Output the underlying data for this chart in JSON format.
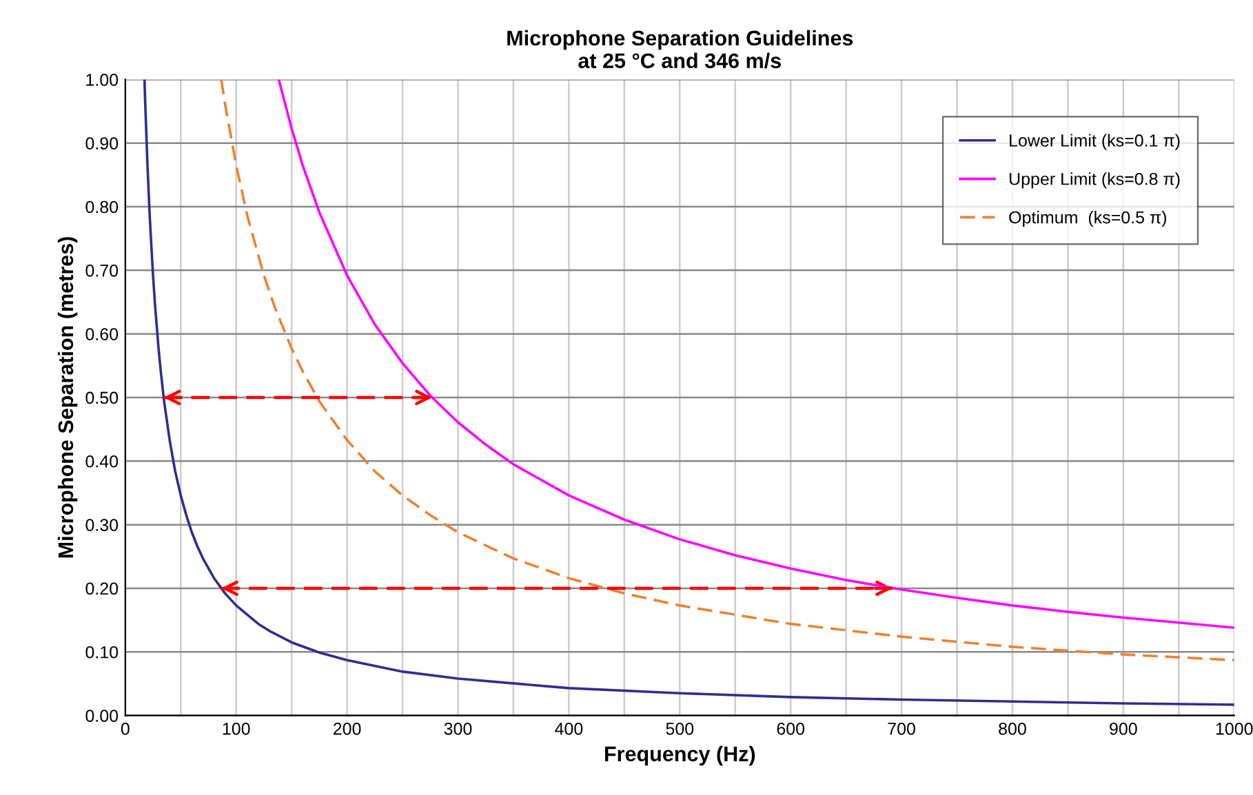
{
  "chart_data": {
    "type": "line",
    "title": "Microphone Separation Guidelines\nat 25 °C and 346 m/s",
    "xlabel": "Frequency (Hz)",
    "ylabel": "Microphone Separation (metres)",
    "series": [
      {
        "name": "Lower Limit (ks=0.1 π)",
        "color": "#2e2e8f",
        "line_style": "solid",
        "x": [
          17.3,
          18,
          20,
          22,
          25,
          27,
          30,
          32,
          35,
          40,
          45,
          50,
          55,
          60,
          65,
          70,
          80,
          90,
          100,
          120,
          130,
          150,
          175,
          200,
          250,
          300,
          400,
          500,
          600,
          700,
          800,
          900,
          1000
        ],
        "values": [
          1.0,
          0.961,
          0.865,
          0.786,
          0.692,
          0.641,
          0.577,
          0.541,
          0.494,
          0.433,
          0.384,
          0.346,
          0.315,
          0.288,
          0.266,
          0.247,
          0.216,
          0.192,
          0.173,
          0.144,
          0.133,
          0.115,
          0.099,
          0.087,
          0.069,
          0.058,
          0.043,
          0.035,
          0.029,
          0.025,
          0.022,
          0.019,
          0.017
        ]
      },
      {
        "name": "Upper Limit (ks=0.8 π)",
        "color": "#ff00ff",
        "line_style": "solid",
        "x": [
          138.4,
          150,
          160,
          175,
          200,
          225,
          250,
          275,
          300,
          325,
          350,
          400,
          450,
          500,
          550,
          600,
          650,
          700,
          750,
          800,
          850,
          900,
          950,
          1000
        ],
        "values": [
          1.0,
          0.923,
          0.865,
          0.791,
          0.692,
          0.615,
          0.554,
          0.503,
          0.461,
          0.426,
          0.395,
          0.346,
          0.308,
          0.277,
          0.252,
          0.231,
          0.213,
          0.198,
          0.185,
          0.173,
          0.163,
          0.154,
          0.146,
          0.138
        ]
      },
      {
        "name": "Optimum  (ks=0.5 π)",
        "color": "#f08030",
        "line_style": "dashed",
        "x": [
          86.5,
          90,
          100,
          110,
          125,
          135,
          150,
          160,
          175,
          200,
          225,
          250,
          275,
          300,
          350,
          400,
          450,
          500,
          600,
          700,
          800,
          900,
          1000
        ],
        "values": [
          1.0,
          0.961,
          0.865,
          0.786,
          0.692,
          0.641,
          0.577,
          0.541,
          0.494,
          0.433,
          0.384,
          0.346,
          0.315,
          0.288,
          0.247,
          0.216,
          0.192,
          0.173,
          0.144,
          0.124,
          0.108,
          0.096,
          0.087
        ]
      },
      {
        "color": "#ff0000",
        "line_style": "dashed",
        "x": [
          34.6,
          276.8
        ],
        "values": [
          0.5,
          0.5
        ]
      },
      {
        "color": "#ff0000",
        "line_style": "dashed",
        "x": [
          86.5,
          692
        ],
        "values": [
          0.2,
          0.2
        ]
      }
    ],
    "xlim": [
      0,
      1000
    ],
    "ylim": [
      0,
      1.0
    ],
    "xticks": [
      0,
      {
        "value": 50,
        "label": null
      },
      100,
      {
        "value": 150,
        "label": null
      },
      200,
      {
        "value": 250,
        "label": null
      },
      300,
      {
        "value": 350,
        "label": null
      },
      400,
      {
        "value": 450,
        "label": null
      },
      500,
      {
        "value": 550,
        "label": null
      },
      600,
      {
        "value": 650,
        "label": null
      },
      700,
      {
        "value": 750,
        "label": null
      },
      800,
      {
        "value": 850,
        "label": null
      },
      900,
      {
        "value": 950,
        "label": null
      },
      1000
    ],
    "yticks": [
      {
        "value": 0,
        "label": "0.00"
      },
      {
        "value": 0.1,
        "label": "0.10"
      },
      {
        "value": 0.2,
        "label": "0.20"
      },
      {
        "value": 0.3,
        "label": "0.30"
      },
      {
        "value": 0.4,
        "label": "0.40"
      },
      {
        "value": 0.5,
        "label": "0.50"
      },
      {
        "value": 0.6,
        "label": "0.60"
      },
      {
        "value": 0.7,
        "label": "0.70"
      },
      {
        "value": 0.8,
        "label": "0.80"
      },
      {
        "value": 0.9,
        "label": "0.90"
      },
      {
        "value": 1.0,
        "label": "1.00"
      }
    ],
    "grid": true,
    "legend": "top right"
  }
}
